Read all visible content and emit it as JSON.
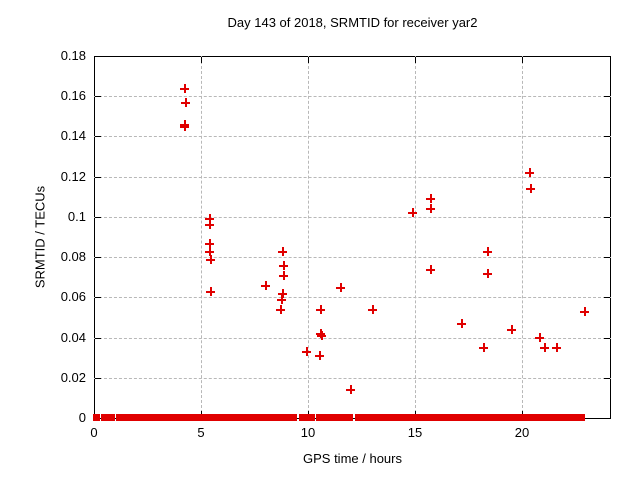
{
  "chart_data": {
    "type": "scatter",
    "title": "Day 143 of 2018, SRMTID for receiver yar2",
    "xlabel": "GPS time / hours",
    "ylabel": "SRMTID / TECUs",
    "xlim": [
      0,
      24.17
    ],
    "ylim": [
      0,
      0.18
    ],
    "xticks": [
      0,
      5,
      10,
      15,
      20
    ],
    "yticks": [
      0,
      0.02,
      0.04,
      0.06,
      0.08,
      0.1,
      0.12,
      0.14,
      0.16,
      0.18
    ],
    "ytick_labels": [
      "0",
      "0.02",
      "0.04",
      "0.06",
      "0.08",
      "0.1",
      "0.12",
      "0.14",
      "0.16",
      "0.18"
    ],
    "grid": true,
    "legend": false,
    "marker": "plus",
    "marker_color": "#e00000",
    "grid_color": "#b8b8b8",
    "border_color": "#000000",
    "background_color": "#ffffff",
    "points": [
      [
        4.25,
        0.164
      ],
      [
        4.27,
        0.157
      ],
      [
        4.25,
        0.146
      ],
      [
        4.25,
        0.145
      ],
      [
        5.4,
        0.099
      ],
      [
        5.4,
        0.096
      ],
      [
        5.4,
        0.087
      ],
      [
        5.4,
        0.083
      ],
      [
        5.43,
        0.079
      ],
      [
        5.45,
        0.063
      ],
      [
        8.04,
        0.066
      ],
      [
        8.79,
        0.083
      ],
      [
        8.87,
        0.076
      ],
      [
        8.87,
        0.071
      ],
      [
        8.79,
        0.062
      ],
      [
        8.78,
        0.059
      ],
      [
        8.74,
        0.054
      ],
      [
        9.94,
        0.033
      ],
      [
        10.54,
        0.031
      ],
      [
        10.58,
        0.042
      ],
      [
        10.64,
        0.041
      ],
      [
        10.61,
        0.054
      ],
      [
        11.54,
        0.065
      ],
      [
        11.98,
        0.014
      ],
      [
        13.03,
        0.054
      ],
      [
        14.88,
        0.102
      ],
      [
        15.75,
        0.109
      ],
      [
        15.75,
        0.104
      ],
      [
        15.72,
        0.074
      ],
      [
        17.17,
        0.047
      ],
      [
        18.21,
        0.035
      ],
      [
        18.4,
        0.083
      ],
      [
        18.4,
        0.072
      ],
      [
        19.5,
        0.044
      ],
      [
        20.37,
        0.122
      ],
      [
        20.42,
        0.114
      ],
      [
        20.84,
        0.04
      ],
      [
        21.05,
        0.035
      ],
      [
        21.63,
        0.035
      ],
      [
        22.92,
        0.053
      ]
    ],
    "zero_band_segments": [
      [
        0.05,
        0.2
      ],
      [
        0.42,
        0.88
      ],
      [
        1.1,
        1.33
      ],
      [
        1.48,
        1.9
      ],
      [
        1.97,
        2.1
      ],
      [
        2.3,
        4.82
      ],
      [
        4.92,
        5.0
      ],
      [
        5.08,
        5.42
      ],
      [
        5.5,
        7.44
      ],
      [
        7.64,
        8.04
      ],
      [
        8.14,
        9.42
      ],
      [
        9.66,
        10.24
      ],
      [
        10.45,
        10.92
      ],
      [
        11.08,
        12.02
      ],
      [
        12.3,
        16.86
      ],
      [
        17.0,
        19.44
      ],
      [
        19.58,
        21.55
      ],
      [
        21.7,
        22.88
      ]
    ]
  }
}
